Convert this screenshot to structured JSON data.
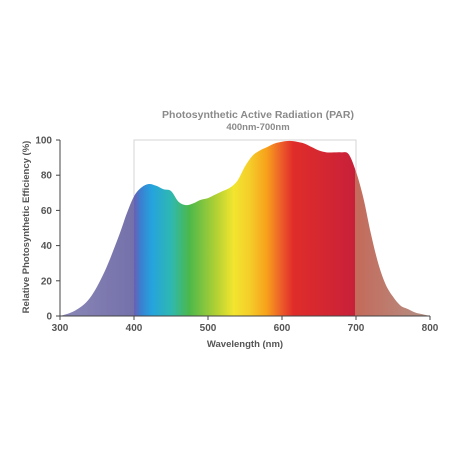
{
  "chart_data": {
    "type": "area",
    "title": "Photosynthetic Active Radiation (PAR)",
    "subtitle": "400nm-700nm",
    "xlabel": "Wavelength (nm)",
    "ylabel": "Relative Photosynthetic Efficiency (%)",
    "xlim": [
      300,
      800
    ],
    "ylim": [
      0,
      100
    ],
    "x_ticks": [
      "300",
      "400",
      "500",
      "600",
      "700",
      "800"
    ],
    "y_ticks": [
      "0",
      "20",
      "40",
      "60",
      "80",
      "100"
    ],
    "grid": false,
    "par_range": [
      400,
      700
    ],
    "x": [
      300,
      320,
      340,
      360,
      380,
      390,
      400,
      410,
      420,
      430,
      440,
      450,
      460,
      470,
      480,
      490,
      500,
      510,
      520,
      530,
      540,
      550,
      560,
      570,
      580,
      590,
      600,
      610,
      620,
      630,
      640,
      650,
      660,
      670,
      680,
      690,
      700,
      710,
      720,
      730,
      740,
      750,
      760,
      770,
      780,
      790,
      800
    ],
    "values": [
      0,
      3,
      10,
      25,
      46,
      58,
      68,
      73,
      75,
      74,
      72,
      71,
      65,
      63,
      64,
      66,
      67,
      69,
      71,
      73,
      77,
      85,
      91,
      94,
      96,
      98,
      99,
      99.5,
      99,
      98,
      96,
      94,
      93,
      93,
      93,
      92,
      82,
      67,
      47,
      30,
      18,
      11,
      6,
      4,
      2,
      1,
      0
    ],
    "colors": {
      "uv": "#7d7aad",
      "violet": "#6a5fb2",
      "blue": "#25a3de",
      "cyan": "#2fb8b0",
      "green": "#4cb84a",
      "yellow_green": "#b9d233",
      "yellow": "#f2e52f",
      "orange": "#f7a11c",
      "red": "#e02d2a",
      "deep_red": "#c8203a",
      "far_red": "#b47a68"
    }
  }
}
